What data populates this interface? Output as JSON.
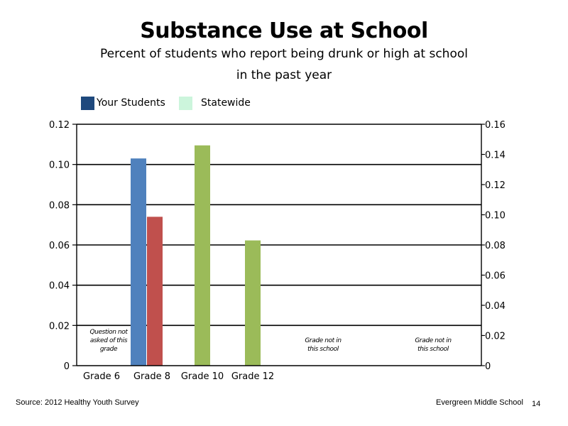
{
  "chart_data": {
    "type": "bar",
    "title": "Substance Use at School",
    "subtitle_lines": [
      "Percent of students who report being drunk or high at school",
      "in the past year"
    ],
    "categories": [
      "Grade 6",
      "Grade 8",
      "Grade 10",
      "Grade 12"
    ],
    "legend": [
      {
        "name": "Your Students",
        "color": "#1f497d"
      },
      {
        "name": "Statewide",
        "color": "#ccf5dc"
      }
    ],
    "left_axis": {
      "ylim": [
        0,
        0.12
      ],
      "ticks": [
        "0",
        "0.02",
        "0.04",
        "0.06",
        "0.08",
        "0.10",
        "0.12"
      ]
    },
    "right_axis": {
      "ylim": [
        0,
        0.16
      ],
      "ticks": [
        "0",
        "0.02",
        "0.04",
        "0.06",
        "0.08",
        "0.10",
        "0.12",
        "0.14",
        "0.16"
      ]
    },
    "bars": [
      {
        "category": "Grade 8",
        "series": "Your Students",
        "axis": "left",
        "value": 0.103,
        "color": "#4f81bd"
      },
      {
        "category": "Grade 8",
        "series": "Statewide",
        "axis": "left",
        "value": 0.074,
        "color": "#c0504d"
      },
      {
        "category": "Grade 10",
        "series": "Statewide",
        "axis": "right",
        "value": 0.146,
        "color": "#9bbb59"
      },
      {
        "category": "Grade 12",
        "series": "Statewide",
        "axis": "right",
        "value": 0.083,
        "color": "#9bbb59"
      }
    ],
    "annotations": [
      {
        "category": "Grade 6",
        "lines": [
          "Question not",
          "asked of this",
          "grade"
        ]
      },
      {
        "category": "Grade 10",
        "lines": [
          "Grade not in",
          "this school"
        ]
      },
      {
        "category": "Grade 12",
        "lines": [
          "Grade not in",
          "this school"
        ]
      }
    ],
    "grid": true
  },
  "footer": {
    "source": "Source: 2012 Healthy Youth Survey",
    "school": "Evergreen Middle  School",
    "page_number": "14"
  }
}
